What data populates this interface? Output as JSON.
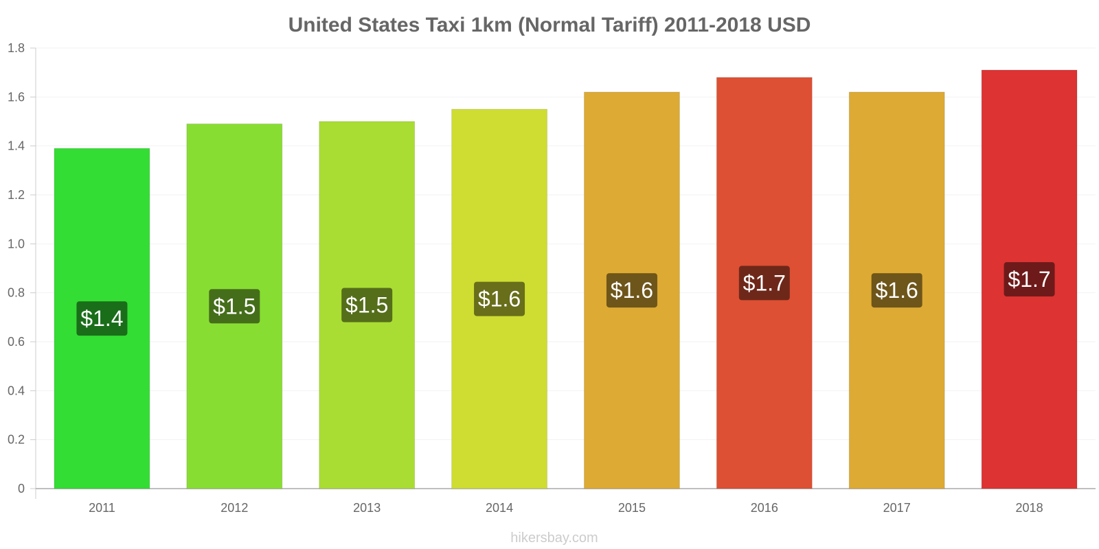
{
  "chart_data": {
    "type": "bar",
    "title": "United States Taxi 1km (Normal Tariff) 2011-2018 USD",
    "xlabel": "",
    "ylabel": "",
    "categories": [
      "2011",
      "2012",
      "2013",
      "2014",
      "2015",
      "2016",
      "2017",
      "2018"
    ],
    "values": [
      1.39,
      1.49,
      1.5,
      1.55,
      1.62,
      1.68,
      1.62,
      1.71
    ],
    "data_labels": [
      "$1.4",
      "$1.5",
      "$1.5",
      "$1.6",
      "$1.6",
      "$1.7",
      "$1.6",
      "$1.7"
    ],
    "bar_colors": [
      "#33dd33",
      "#88dd33",
      "#aadd33",
      "#cfdd33",
      "#ddaa33",
      "#dd5033",
      "#ddaa33",
      "#dd3333"
    ],
    "label_bg_colors": [
      "#1a6e1a",
      "#456e1a",
      "#556e1a",
      "#686e1a",
      "#6e551a",
      "#6e281a",
      "#6e551a",
      "#6e1a1a"
    ],
    "ylim": [
      0,
      1.8
    ],
    "yticks": [
      0,
      0.2,
      0.4,
      0.6,
      0.8,
      1.0,
      1.2,
      1.4,
      1.6,
      1.8
    ],
    "ytick_labels": [
      "0",
      "0.2",
      "0.4",
      "0.6",
      "0.8",
      "1.0",
      "1.2",
      "1.4",
      "1.6",
      "1.8"
    ],
    "grid": true,
    "legend": "none"
  },
  "footer": {
    "credit": "hikersbay.com"
  }
}
